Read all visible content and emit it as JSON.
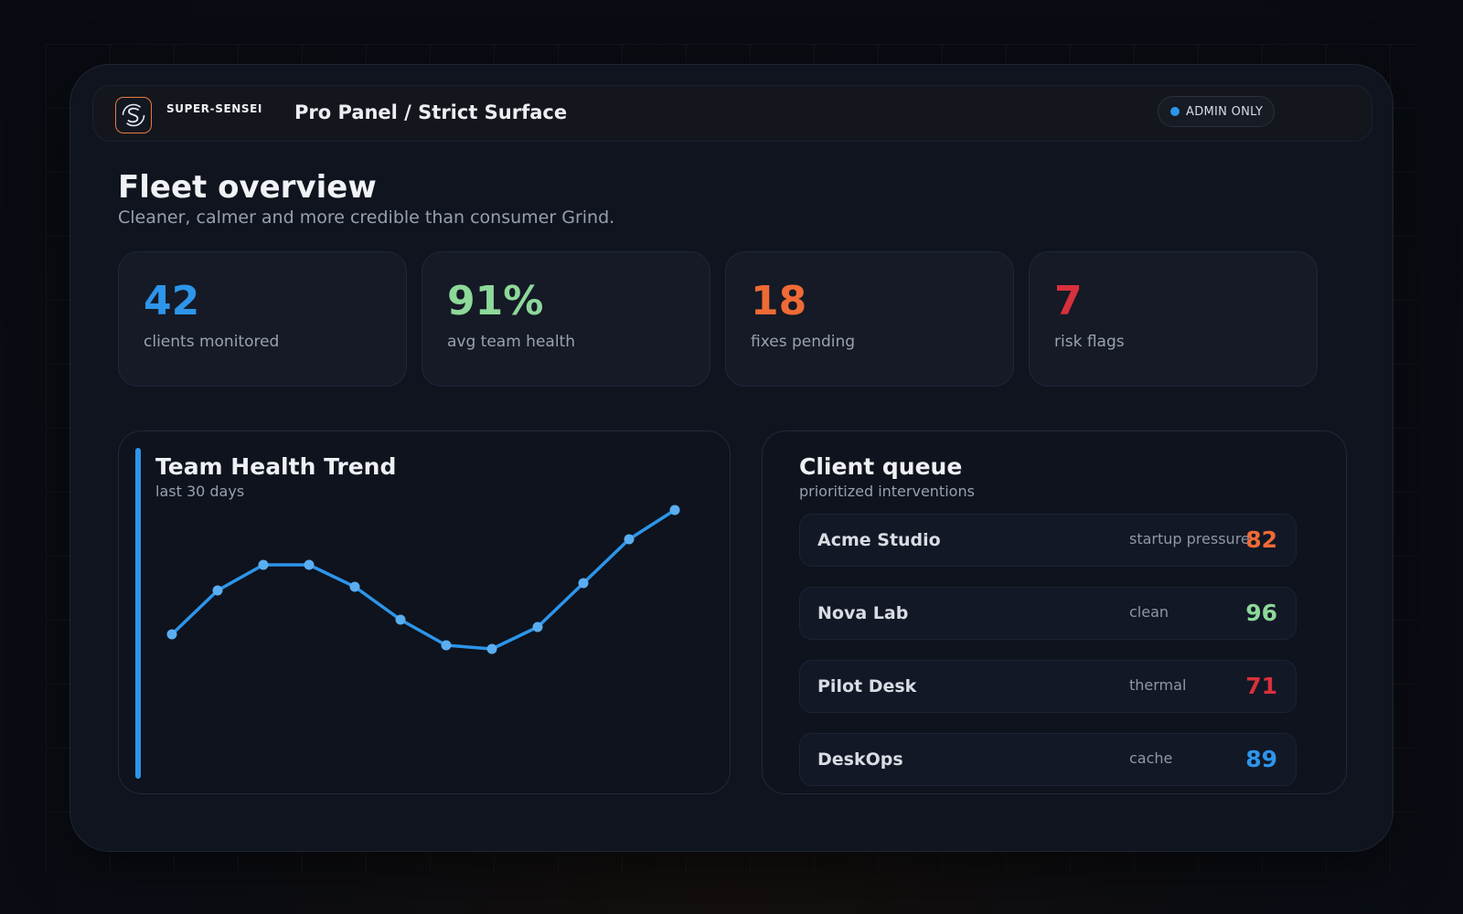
{
  "header": {
    "brand": "SUPER-SENSEI",
    "breadcrumb": "Pro Panel / Strict Surface",
    "badge": "ADMIN ONLY",
    "badge_color": "#2d95ea",
    "logo_icon": "logo-s-icon"
  },
  "page": {
    "title": "Fleet overview",
    "subtitle": "Cleaner, calmer and more credible than consumer Grind."
  },
  "stats": [
    {
      "value": "42",
      "label": "clients monitored",
      "color": "#2d95ea"
    },
    {
      "value": "91%",
      "label": "avg team health",
      "color": "#8ed89a"
    },
    {
      "value": "18",
      "label": "fixes pending",
      "color": "#f06a35"
    },
    {
      "value": "7",
      "label": "risk flags",
      "color": "#d8303c"
    }
  ],
  "trend": {
    "title": "Team Health Trend",
    "subtitle": "last 30 days"
  },
  "chart_data": {
    "type": "line",
    "title": "Team Health Trend",
    "subtitle": "last 30 days",
    "values": [
      72,
      84,
      91,
      91,
      85,
      76,
      69,
      68,
      74,
      86,
      98,
      106
    ],
    "ylim": [
      40,
      110
    ],
    "grid": false,
    "color": "#2d95ea"
  },
  "queue": {
    "title": "Client queue",
    "subtitle": "prioritized interventions",
    "rows": [
      {
        "name": "Acme Studio",
        "tag": "startup pressure",
        "score": "82",
        "color": "#f06a35"
      },
      {
        "name": "Nova Lab",
        "tag": "clean",
        "score": "96",
        "color": "#8ed89a"
      },
      {
        "name": "Pilot Desk",
        "tag": "thermal",
        "score": "71",
        "color": "#d8303c"
      },
      {
        "name": "DeskOps",
        "tag": "cache",
        "score": "89",
        "color": "#2d95ea"
      }
    ]
  }
}
